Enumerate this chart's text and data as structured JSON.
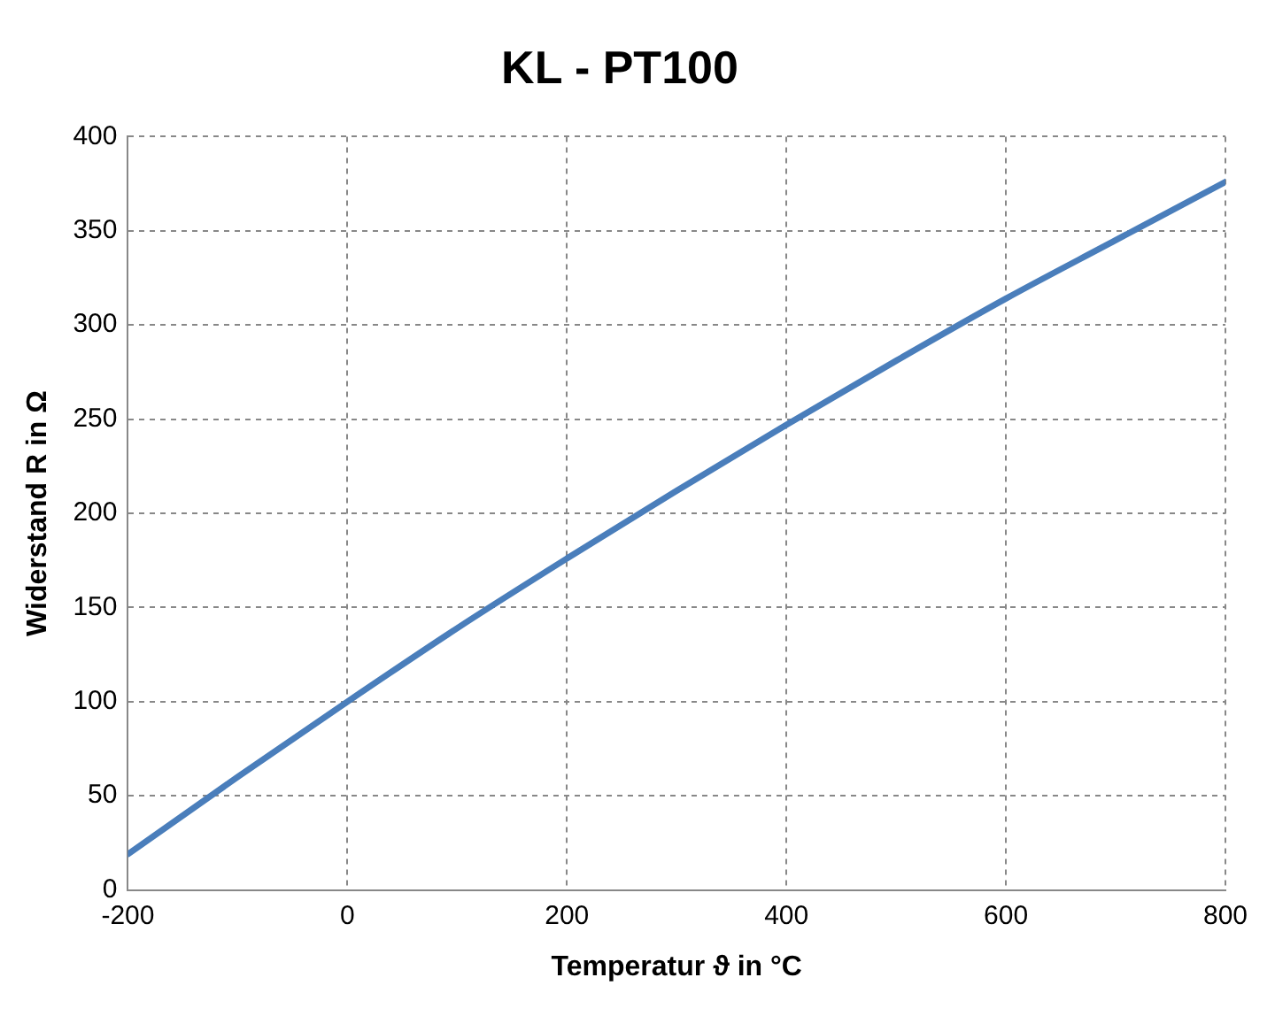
{
  "chart_data": {
    "type": "line",
    "title": "KL - PT100",
    "xlabel": "Temperatur ϑ in °C",
    "ylabel": "Widerstand R in Ω",
    "x": [
      -200,
      -100,
      0,
      100,
      200,
      300,
      400,
      500,
      600,
      700,
      800
    ],
    "series": [
      {
        "color": "#4a7ebb",
        "values": [
          19,
          60,
          100,
          139,
          176,
          212,
          247,
          281,
          314,
          345,
          376
        ]
      }
    ],
    "xlim": [
      -200,
      800
    ],
    "xticks": [
      -200,
      0,
      200,
      400,
      600,
      800
    ],
    "ylim": [
      0,
      400
    ],
    "yticks": [
      0,
      50,
      100,
      150,
      200,
      250,
      300,
      350,
      400
    ],
    "grid": true,
    "legend": false,
    "marker": "none",
    "line_style": "solid"
  }
}
